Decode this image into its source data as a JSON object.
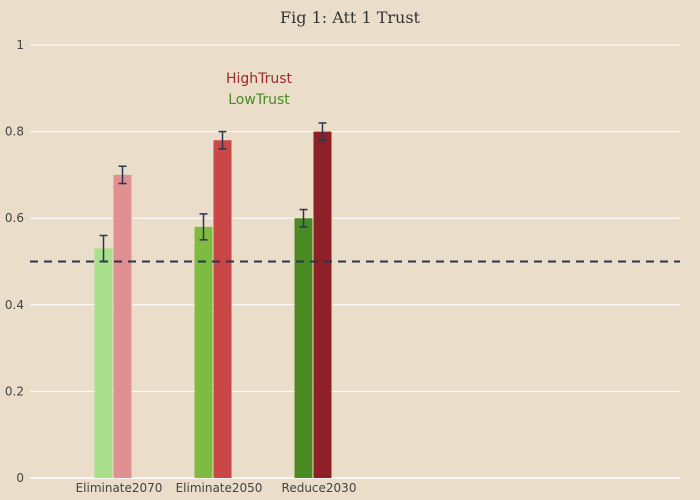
{
  "chart_data": {
    "type": "bar",
    "title": "Fig 1: Att 1 Trust",
    "xlabel": "",
    "ylabel": "",
    "categories": [
      "Eliminate2070",
      "Eliminate2050",
      "Reduce2030"
    ],
    "ylim": [
      0,
      1
    ],
    "yticks": [
      0,
      0.2,
      0.4,
      0.6,
      0.8,
      1
    ],
    "ytick_labels": [
      "0",
      "0.2",
      "0.4",
      "0.6",
      "0.8",
      "1"
    ],
    "grid": true,
    "legend_position": "top-left",
    "reference_line": {
      "y": 0.5,
      "style": "dashed",
      "color": "#2a3550"
    },
    "series": [
      {
        "name": "LowTrust",
        "values": [
          0.53,
          0.58,
          0.6
        ],
        "error": [
          0.03,
          0.03,
          0.02
        ],
        "colors": [
          "#a8e08c",
          "#7fbb41",
          "#4b8a22"
        ],
        "legend_color": "#4b8a22"
      },
      {
        "name": "HighTrust",
        "values": [
          0.7,
          0.78,
          0.8
        ],
        "error": [
          0.02,
          0.02,
          0.02
        ],
        "colors": [
          "#e09090",
          "#c94747",
          "#8e2128"
        ],
        "legend_color": "#9e2a2b"
      }
    ],
    "colors": {
      "background": "#eaddc9",
      "grid": "#ffffff",
      "error_bar": "#2a3550"
    }
  }
}
